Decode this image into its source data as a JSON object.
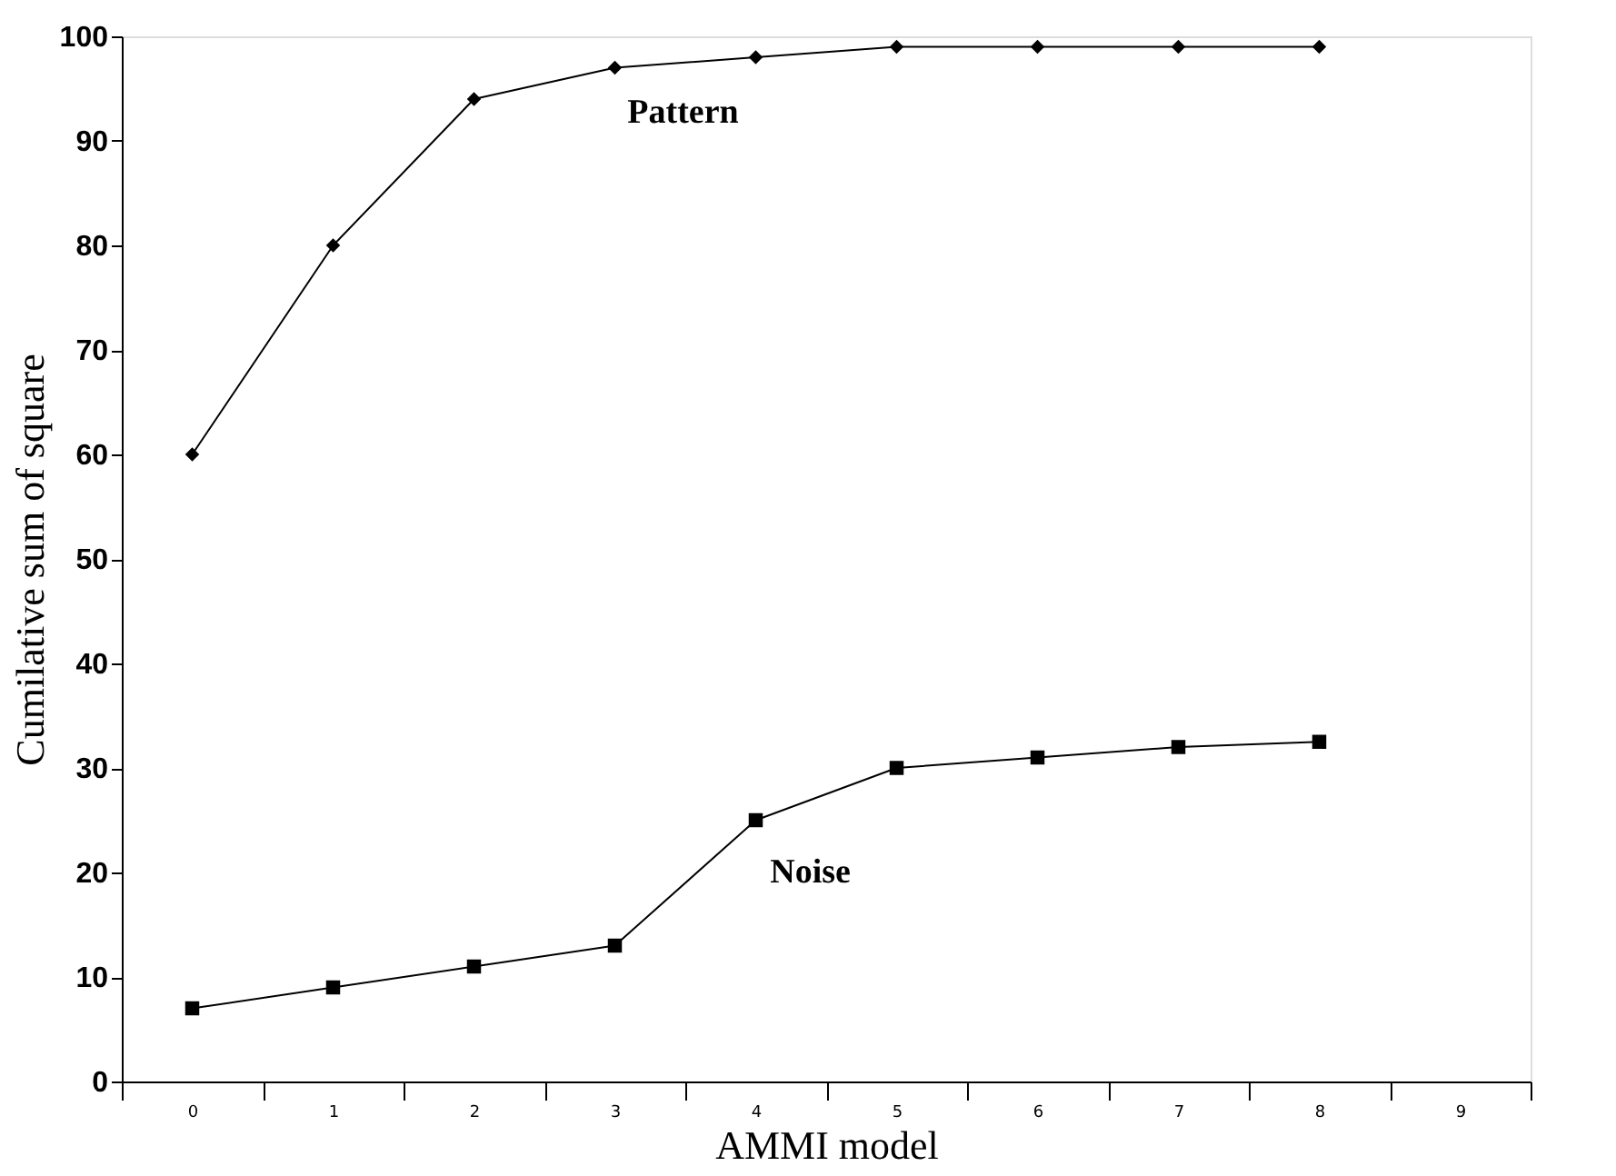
{
  "chart_data": {
    "type": "line",
    "xlabel": "AMMI model",
    "ylabel": "Cumilative sum of square",
    "categories": [
      "0",
      "1",
      "2",
      "3",
      "4",
      "5",
      "6",
      "7",
      "8",
      "9"
    ],
    "series": [
      {
        "name": "Pattern",
        "color": "#000000",
        "marker": "diamond",
        "values": [
          60,
          80,
          94,
          97,
          98,
          99,
          99,
          99,
          99,
          null
        ]
      },
      {
        "name": "Noise",
        "color": "#000000",
        "marker": "square",
        "values": [
          7,
          9,
          11,
          13,
          25,
          30,
          31,
          32,
          32.5,
          null
        ]
      }
    ],
    "ylim": [
      0,
      100
    ],
    "yticks": [
      0,
      10,
      20,
      30,
      40,
      50,
      60,
      70,
      80,
      90,
      100
    ],
    "grid": false,
    "line_style": "solid"
  }
}
